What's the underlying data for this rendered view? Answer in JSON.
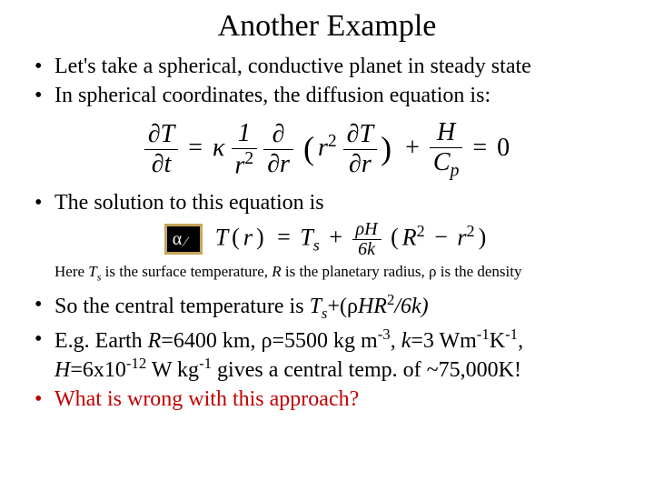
{
  "title": "Another Example",
  "bullets_top": {
    "b1": "Let's take a spherical, conductive planet in steady state",
    "b2": "In spherical coordinates, the diffusion equation is:"
  },
  "equation1": {
    "text": "∂T/∂t = κ (1/r²) ∂/∂r ( r² ∂T/∂r ) + H/Cₚ = 0",
    "colors": {
      "text": "#000000"
    },
    "fontsize": 28
  },
  "bullet_mid": "The solution to this equation is",
  "alpha_box": {
    "symbol": "α",
    "bg": "#000000",
    "border": "#c6a55a",
    "fg": "#ffffff"
  },
  "equation2": {
    "text": "T(r) = Tₛ + (ρH / 6k)(R² − r²)",
    "fontsize": 26
  },
  "note": {
    "pre": "Here ",
    "Ts": "T",
    "Ts_sub": "s",
    "mid1": " is the surface temperature, ",
    "R": "R",
    "mid2": " is the planetary radius, ",
    "rho": "ρ",
    "post": " is the density"
  },
  "bullets_bottom": {
    "b4_pre": "So the central temperature is ",
    "b4_expr": "Tₛ+(ρHR²/6k)",
    "b5_line1_a": "E.g. Earth ",
    "b5_R": "R",
    "b5_Rval": "=6400 km, ",
    "b5_rho": "ρ",
    "b5_rhoval": "=5500 kg m",
    "b5_rho_exp": "-3",
    "b5_k": ", k",
    "b5_kval": "=3 Wm",
    "b5_k_e1": "-1",
    "b5_k_K": "K",
    "b5_k_e2": "-1",
    "b5_comma": ",",
    "b5_line2_H": "H",
    "b5_Hval": "=6x10",
    "b5_H_exp": "-12",
    "b5_Hunit": " W kg",
    "b5_Hu_exp": "-1",
    "b5_tail": " gives a central temp. of ~75,000K!",
    "b6": "What is wrong with this approach?"
  },
  "styling": {
    "page_bg": "#ffffff",
    "text_color": "#000000",
    "red": "#c00000",
    "title_fontsize": 34,
    "bullet_fontsize": 24,
    "note_fontsize": 17,
    "font_family": "Times New Roman"
  }
}
